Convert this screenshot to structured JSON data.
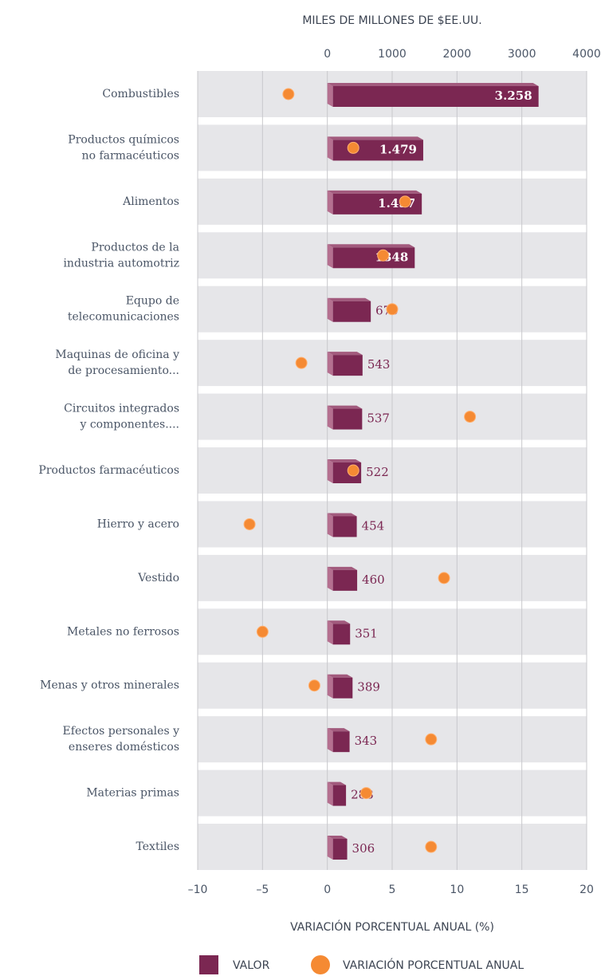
{
  "chart_data": {
    "type": "bar",
    "x2label": "MILES DE MILLONES DE $EE.UU.",
    "xlabel": "VARIACIÓN PORCENTUAL ANUAL (%)",
    "categories": [
      "Combustibles",
      "Productos químicos\nno farmacéuticos",
      "Alimentos",
      "Productos de la\nindustria automotriz",
      "Equpo de\ntelecomunicaciones",
      "Maquinas de oficina y\nde procesamiento...",
      "Circuitos integrados\ny componentes....",
      "Productos farmacéuticos",
      "Hierro y acero",
      "Vestido",
      "Metales no ferrosos",
      "Menas y otros minerales",
      "Efectos personales y\nenseres domésticos",
      "Materias primas",
      "Textiles"
    ],
    "series": [
      {
        "name": "VALOR",
        "color": "#7b2752",
        "axis": "x2",
        "values": [
          3258,
          1479,
          1457,
          1348,
          670,
          543,
          537,
          522,
          454,
          460,
          351,
          389,
          343,
          288,
          306
        ],
        "value_labels": [
          "3.258",
          "1.479",
          "1.457",
          "1348",
          "670",
          "543",
          "537",
          "522",
          "454",
          "460",
          "351",
          "389",
          "343",
          "288",
          "306"
        ]
      },
      {
        "name": "VARIACIÓN PORCENTUAL ANUAL",
        "color": "#f58a33",
        "values": [
          -3,
          2,
          6,
          4.3,
          5,
          -2,
          11,
          2,
          -6,
          9,
          -5,
          -1,
          8,
          3,
          8
        ]
      }
    ],
    "xlim": [
      -10,
      20
    ],
    "xticks": [
      {
        "value": -10,
        "label": "–10"
      },
      {
        "value": -5,
        "label": "–5"
      },
      0,
      5,
      10,
      15,
      20
    ],
    "x2lim": [
      -2000,
      4000
    ],
    "x2ticks": [
      0,
      1000,
      2000,
      3000,
      4000
    ],
    "grid": true
  }
}
